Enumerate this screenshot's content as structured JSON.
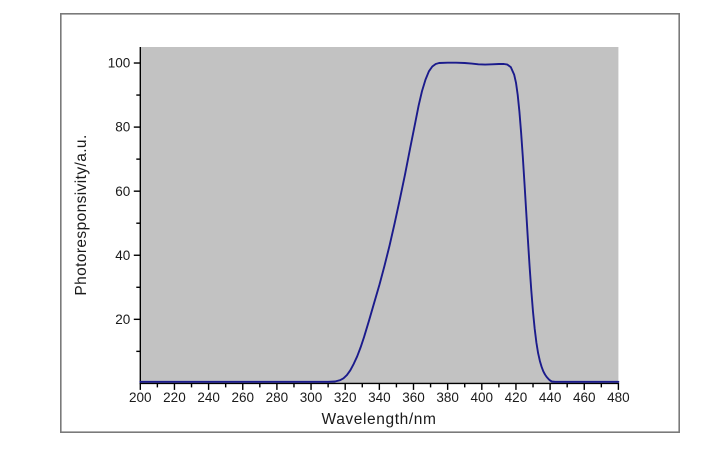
{
  "figure": {
    "background_color": "#ffffff",
    "frame_border_color": "#7a7a7a",
    "plot_background_color": "#c2c2c2",
    "axis_color": "#000000",
    "text_color": "#1a1a1a"
  },
  "chart_data": {
    "type": "line",
    "title": "",
    "xlabel": "Wavelength/nm",
    "ylabel": "Photoresponsivity/a.u.",
    "xlim": [
      200,
      480
    ],
    "ylim": [
      0,
      105
    ],
    "x_major_ticks": [
      200,
      220,
      240,
      260,
      280,
      300,
      320,
      340,
      360,
      380,
      400,
      420,
      440,
      460,
      480
    ],
    "x_minor_ticks": [
      210,
      230,
      250,
      270,
      290,
      310,
      330,
      350,
      370,
      390,
      410,
      430,
      450,
      470
    ],
    "y_major_ticks": [
      20,
      40,
      60,
      80,
      100
    ],
    "y_minor_ticks": [
      10,
      30,
      50,
      70,
      90
    ],
    "grid": false,
    "legend": null,
    "series": [
      {
        "name": "photoresponsivity",
        "color": "#1b1b8c",
        "points": [
          [
            200,
            0
          ],
          [
            220,
            0
          ],
          [
            240,
            0
          ],
          [
            260,
            0
          ],
          [
            280,
            0
          ],
          [
            300,
            0
          ],
          [
            310,
            0
          ],
          [
            314,
            0.1
          ],
          [
            317,
            0.5
          ],
          [
            319,
            1.1
          ],
          [
            321,
            2.1
          ],
          [
            323,
            3.6
          ],
          [
            325,
            5.6
          ],
          [
            327,
            8
          ],
          [
            329,
            10.8
          ],
          [
            331,
            14
          ],
          [
            334,
            19.3
          ],
          [
            337,
            24.8
          ],
          [
            340,
            30.4
          ],
          [
            343,
            36.4
          ],
          [
            346,
            42.8
          ],
          [
            349,
            49.8
          ],
          [
            352,
            57.2
          ],
          [
            355,
            65
          ],
          [
            358,
            73.2
          ],
          [
            361,
            81.2
          ],
          [
            363,
            86.6
          ],
          [
            365,
            91.2
          ],
          [
            367,
            94.8
          ],
          [
            369,
            97.4
          ],
          [
            371,
            98.9
          ],
          [
            373,
            99.7
          ],
          [
            375,
            100
          ],
          [
            380,
            100.1
          ],
          [
            385,
            100.1
          ],
          [
            390,
            100
          ],
          [
            394,
            99.8
          ],
          [
            398,
            99.6
          ],
          [
            402,
            99.5
          ],
          [
            406,
            99.6
          ],
          [
            410,
            99.7
          ],
          [
            413,
            99.7
          ],
          [
            415,
            99.5
          ],
          [
            417,
            98.7
          ],
          [
            419,
            96.3
          ],
          [
            420,
            93.8
          ],
          [
            421,
            90
          ],
          [
            422,
            84.8
          ],
          [
            423,
            78.2
          ],
          [
            424,
            70.6
          ],
          [
            425,
            62.2
          ],
          [
            426,
            53.4
          ],
          [
            427,
            44.6
          ],
          [
            428,
            36.2
          ],
          [
            429,
            28.6
          ],
          [
            430,
            22
          ],
          [
            431,
            16.6
          ],
          [
            432,
            12.3
          ],
          [
            433,
            9
          ],
          [
            434,
            6.5
          ],
          [
            435,
            4.7
          ],
          [
            436,
            3.3
          ],
          [
            437,
            2.3
          ],
          [
            438,
            1.5
          ],
          [
            439,
            0.9
          ],
          [
            440,
            0.4
          ],
          [
            441,
            0.1
          ],
          [
            443,
            0
          ],
          [
            450,
            0
          ],
          [
            460,
            0
          ],
          [
            470,
            0
          ],
          [
            480,
            0
          ]
        ]
      }
    ]
  }
}
